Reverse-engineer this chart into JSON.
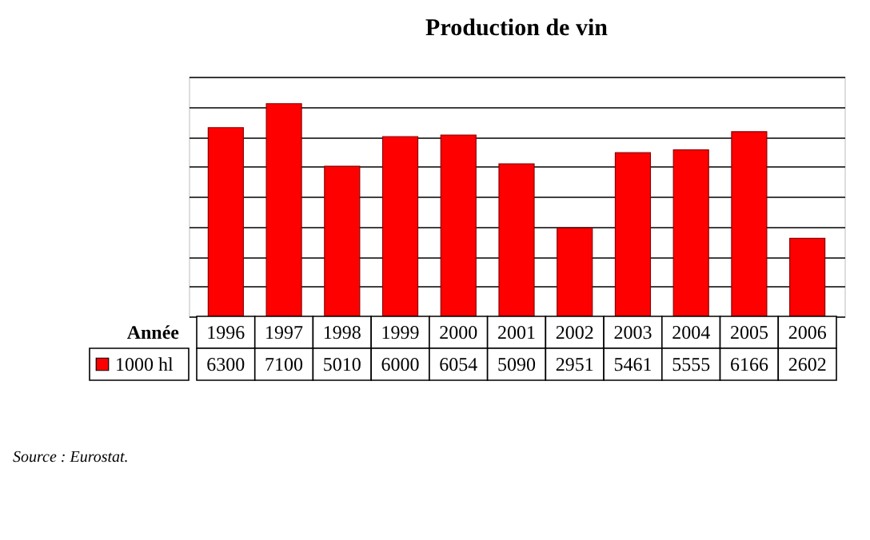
{
  "chart_data": {
    "type": "bar",
    "title": "Production de vin",
    "xlabel": "Année",
    "categories": [
      "1996",
      "1997",
      "1998",
      "1999",
      "2000",
      "2001",
      "2002",
      "2003",
      "2004",
      "2005",
      "2006"
    ],
    "series": [
      {
        "name": "1000 hl",
        "color": "#ff0000",
        "values": [
          6300,
          7100,
          5010,
          6000,
          6054,
          5090,
          2951,
          5461,
          5555,
          6166,
          2602
        ]
      }
    ],
    "ylim": [
      0,
      8000
    ],
    "yticks": [
      {
        "value": 0,
        "label": null
      },
      {
        "value": 1000,
        "label": null
      },
      {
        "value": 2000,
        "label": null
      },
      {
        "value": 3000,
        "label": null
      },
      {
        "value": 4000,
        "label": null
      },
      {
        "value": 5000,
        "label": null
      },
      {
        "value": 6000,
        "label": null
      },
      {
        "value": 7000,
        "label": null
      },
      {
        "value": 8000,
        "label": null
      }
    ],
    "grid": "y",
    "data_labels": true,
    "annotations": [
      "Source : Eurostat."
    ]
  }
}
